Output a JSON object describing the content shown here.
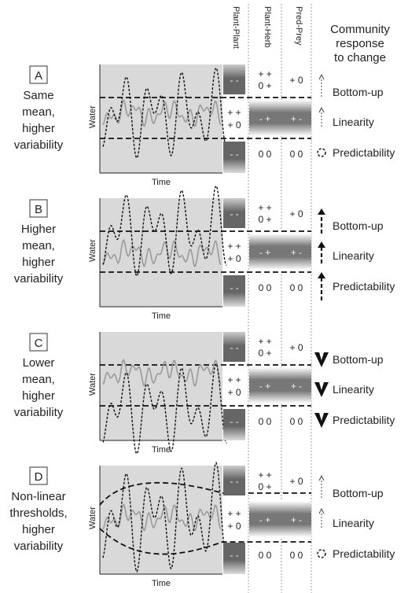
{
  "headers": {
    "col1": "Plant-Plant",
    "col2": "Plant-Herb",
    "col3": "Pred-Prey",
    "col4_lines": [
      "Community",
      "response",
      "to change"
    ]
  },
  "axis_labels": {
    "y": "Water",
    "x": "Time"
  },
  "interaction_symbols": {
    "top_plant_plant": "- -",
    "top_plant_herb_lines": [
      "+ +",
      "0 +"
    ],
    "top_pred_prey": "+ 0",
    "mid_plant_plant_lines": [
      "+ +",
      "+ 0"
    ],
    "mid_plant_herb": "- +",
    "mid_pred_prey": "+ -",
    "bot_plant_plant": "- -",
    "bot_plant_herb": "0 0",
    "bot_pred_prey": "0 0"
  },
  "responses": [
    "Bottom-up",
    "Linearity",
    "Predictability"
  ],
  "panels": [
    {
      "letter": "A",
      "desc_lines": [
        "Same",
        "mean,",
        "higher",
        "variability"
      ],
      "arrow_style": "thin-up-up-circle"
    },
    {
      "letter": "B",
      "desc_lines": [
        "Higher",
        "mean,",
        "higher",
        "variability"
      ],
      "arrow_style": "dashed-up-all"
    },
    {
      "letter": "C",
      "desc_lines": [
        "Lower",
        "mean,",
        "higher",
        "variability"
      ],
      "arrow_style": "bold-down-all"
    },
    {
      "letter": "D",
      "desc_lines": [
        "Non-linear",
        "thresholds,",
        "higher",
        "variability"
      ],
      "arrow_style": "thin-up-up-circle"
    }
  ],
  "colors": {
    "plot_bg": "#d9d9d9",
    "band_dark": "#666666",
    "curve_grey": "#9a9a9a",
    "curve_black": "#111111"
  }
}
